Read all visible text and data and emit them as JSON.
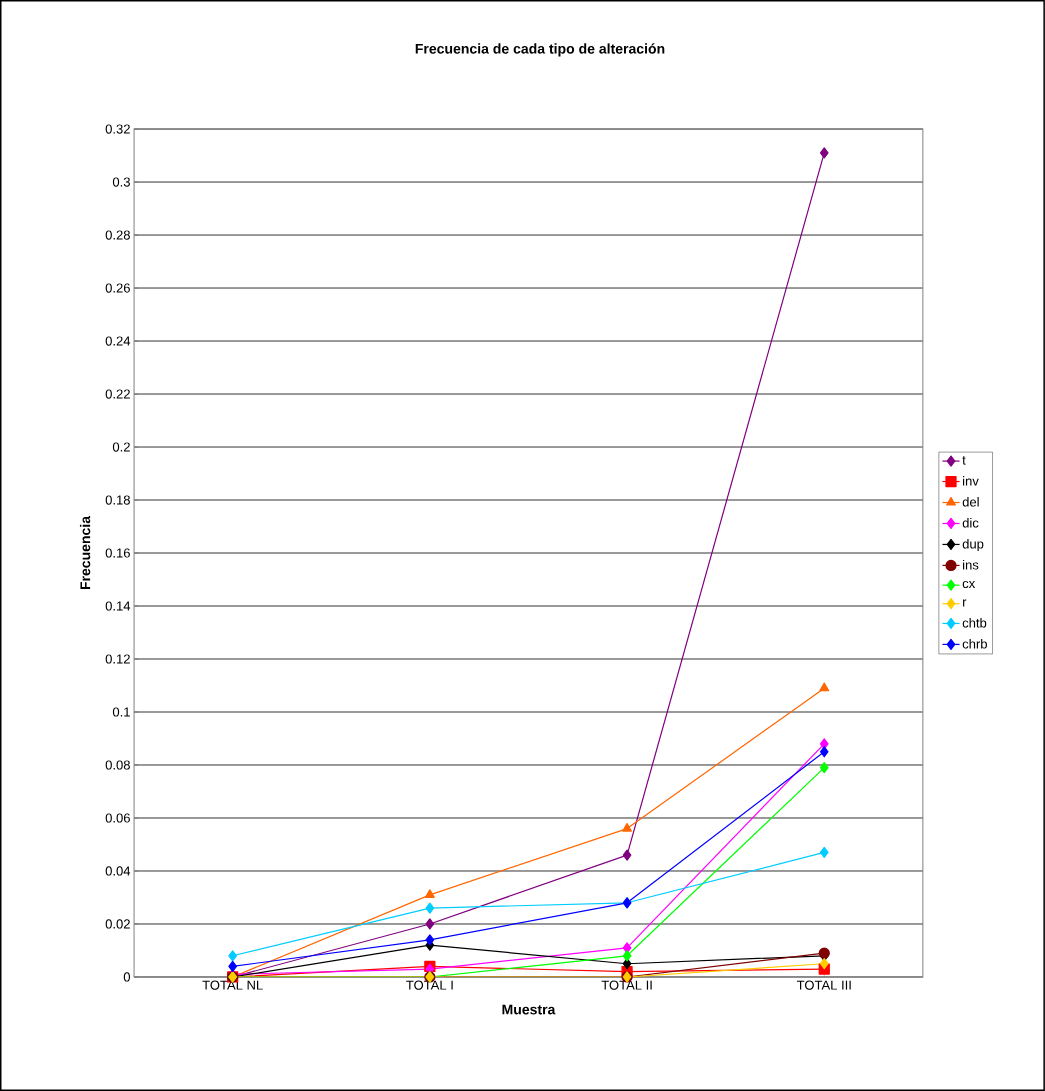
{
  "chart_data": {
    "type": "line",
    "title": "Frecuencia de cada tipo de alteración",
    "xlabel": "Muestra",
    "ylabel": "Frecuencia",
    "categories": [
      "TOTAL NL",
      "TOTAL I",
      "TOTAL II",
      "TOTAL III"
    ],
    "series": [
      {
        "name": "t",
        "color": "#800080",
        "marker": "diamond",
        "values": [
          0,
          0.02,
          0.046,
          0.311
        ]
      },
      {
        "name": "inv",
        "color": "#ff0000",
        "marker": "square",
        "values": [
          0,
          0.004,
          0.002,
          0.003
        ]
      },
      {
        "name": "del",
        "color": "#ff6600",
        "marker": "triangle",
        "values": [
          0,
          0.031,
          0.056,
          0.109
        ]
      },
      {
        "name": "dic",
        "color": "#ff00ff",
        "marker": "diamond",
        "values": [
          0.001,
          0.003,
          0.011,
          0.088
        ]
      },
      {
        "name": "dup",
        "color": "#000000",
        "marker": "diamond",
        "values": [
          0,
          0.012,
          0.005,
          0.008
        ]
      },
      {
        "name": "ins",
        "color": "#800000",
        "marker": "circle",
        "values": [
          0,
          0,
          0,
          0.009
        ]
      },
      {
        "name": "cx",
        "color": "#00ff00",
        "marker": "diamond",
        "values": [
          0,
          0,
          0.008,
          0.079
        ]
      },
      {
        "name": "r",
        "color": "#ffcc00",
        "marker": "diamond",
        "values": [
          0,
          0,
          0,
          0.005
        ]
      },
      {
        "name": "chtb",
        "color": "#00ccff",
        "marker": "diamond",
        "values": [
          0.008,
          0.026,
          0.028,
          0.047
        ]
      },
      {
        "name": "chrb",
        "color": "#0000ff",
        "marker": "diamond",
        "values": [
          0.004,
          0.014,
          0.028,
          0.085
        ]
      }
    ],
    "ylim": [
      0,
      0.32
    ],
    "yticks": [
      0,
      0.02,
      0.04,
      0.06,
      0.08,
      0.1,
      0.12,
      0.14,
      0.16,
      0.18,
      0.2,
      0.22,
      0.24,
      0.26,
      0.28,
      0.3,
      0.32
    ],
    "grid": "y",
    "legend": "right",
    "line_style": "solid"
  }
}
